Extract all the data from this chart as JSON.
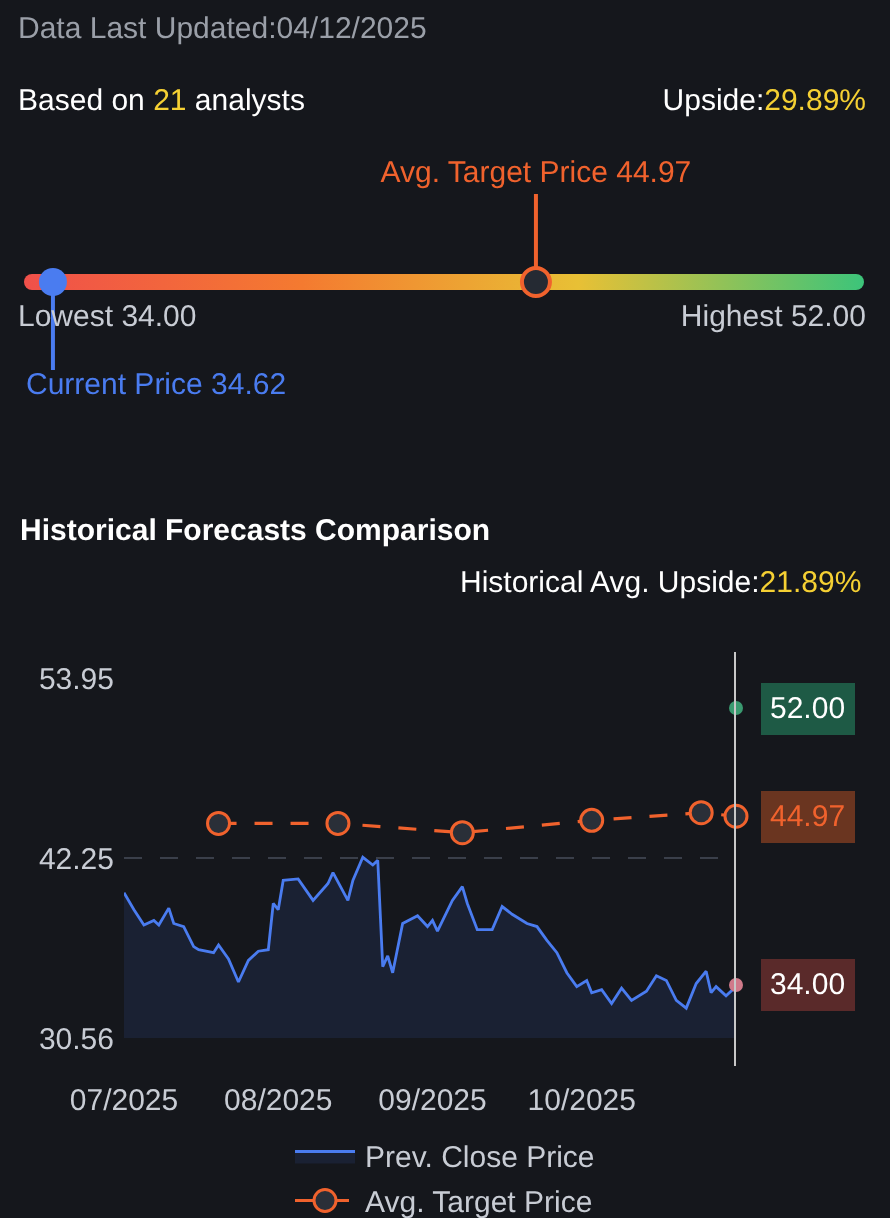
{
  "chart_data": [
    {
      "type": "other",
      "title": "Data Last Updated:04/12/2025",
      "annotations": [
        "Based on 21 analysts",
        "Upside:29.89%",
        "Avg. Target Price 44.97",
        "Lowest 34.00",
        "Highest 52.00",
        "Current Price 34.62"
      ]
    },
    {
      "type": "line",
      "title": "Historical Forecasts Comparison",
      "subtitle": "Historical Avg. Upside:21.89%",
      "x": [
        "2025-07-01",
        "2025-07-03",
        "2025-07-05",
        "2025-07-07",
        "2025-07-08",
        "2025-07-10",
        "2025-07-11",
        "2025-07-13",
        "2025-07-15",
        "2025-07-16",
        "2025-07-19",
        "2025-07-20",
        "2025-07-22",
        "2025-07-24",
        "2025-07-26",
        "2025-07-28",
        "2025-07-30",
        "2025-07-31",
        "2025-08-01",
        "2025-08-02",
        "2025-08-05",
        "2025-08-08",
        "2025-08-11",
        "2025-08-12",
        "2025-08-15",
        "2025-08-16",
        "2025-08-18",
        "2025-08-20",
        "2025-08-21",
        "2025-08-22",
        "2025-08-23",
        "2025-08-24",
        "2025-08-26",
        "2025-08-29",
        "2025-08-31",
        "2025-09-01",
        "2025-09-02",
        "2025-09-05",
        "2025-09-07",
        "2025-09-08",
        "2025-09-10",
        "2025-09-13",
        "2025-09-15",
        "2025-09-17",
        "2025-09-20",
        "2025-09-22",
        "2025-09-24",
        "2025-09-26",
        "2025-09-28",
        "2025-09-30",
        "2025-10-02",
        "2025-10-03",
        "2025-10-05",
        "2025-10-07",
        "2025-10-09",
        "2025-10-11",
        "2025-10-14",
        "2025-10-16",
        "2025-10-18",
        "2025-10-20",
        "2025-10-22",
        "2025-10-24",
        "2025-10-26",
        "2025-10-27",
        "2025-10-28",
        "2025-10-30",
        "2025-11-01"
      ],
      "series": [
        {
          "name": "Prev. Close Price",
          "type": "area",
          "color": "#4a7cf0",
          "marker": "none",
          "line_style": "solid",
          "values": [
            40.0,
            38.9,
            37.9,
            38.2,
            37.9,
            39.0,
            38.0,
            37.8,
            36.5,
            36.3,
            36.1,
            36.6,
            35.7,
            34.2,
            35.6,
            36.2,
            36.3,
            39.3,
            38.9,
            40.8,
            40.9,
            39.5,
            40.6,
            41.3,
            39.5,
            40.8,
            42.3,
            41.8,
            42.1,
            35.2,
            35.9,
            34.8,
            38.0,
            38.5,
            37.8,
            38.2,
            37.5,
            39.5,
            40.4,
            39.3,
            37.6,
            37.6,
            39.1,
            38.6,
            38.0,
            37.8,
            36.9,
            36.1,
            34.8,
            33.9,
            34.3,
            33.5,
            33.7,
            32.8,
            33.8,
            33.0,
            33.6,
            34.6,
            34.3,
            33.0,
            32.5,
            34.1,
            34.9,
            33.5,
            33.9,
            33.3,
            33.9
          ]
        },
        {
          "name": "Avg. Target Price",
          "type": "line",
          "color": "#f0622d",
          "marker": "circle",
          "line_style": "dashed",
          "x": [
            "2025-07-20",
            "2025-08-13",
            "2025-09-07",
            "2025-10-03",
            "2025-10-25",
            "2025-11-01"
          ],
          "values": [
            44.5,
            44.5,
            43.9,
            44.7,
            45.2,
            44.97
          ]
        },
        {
          "type": "scatter",
          "color": "#3a9a70",
          "x": [
            "2025-11-01"
          ],
          "values": [
            52
          ]
        },
        {
          "type": "scatter",
          "color": "#d07a8a",
          "x": [
            "2025-11-01"
          ],
          "values": [
            34
          ]
        }
      ],
      "xlim": [
        "2025-07-01",
        "2025-11-01"
      ],
      "xticks": [
        {
          "value": "2025-07-01",
          "label": "07/2025"
        },
        {
          "value": "2025-08-01",
          "label": "08/2025"
        },
        {
          "value": "2025-09-01",
          "label": "09/2025"
        },
        {
          "value": "2025-10-01",
          "label": "10/2025"
        }
      ],
      "ylim": [
        30.56,
        53.95
      ],
      "yticks": [
        30.56,
        42.25,
        53.95
      ],
      "grid": "y",
      "legend": "bottom",
      "ref_lines": [
        {
          "axis": "x",
          "value": "2025-11-01",
          "color": "#c8c8c8"
        }
      ],
      "annotations": [
        {
          "text": "52.00",
          "x": "2025-11-01",
          "y": 52
        },
        {
          "text": "44.97",
          "x": "2025-11-01",
          "y": 44.97
        },
        {
          "text": "34.00",
          "x": "2025-11-01",
          "y": 34
        }
      ]
    }
  ]
}
